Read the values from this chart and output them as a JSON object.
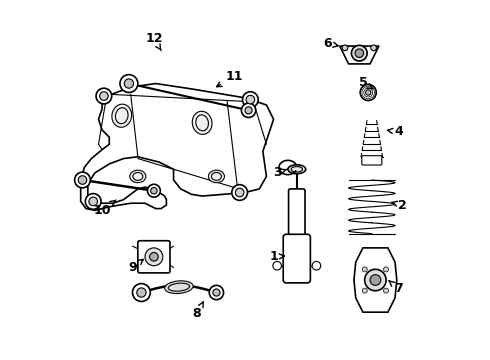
{
  "title": "",
  "background_color": "#ffffff",
  "line_color": "#000000",
  "label_color": "#000000",
  "fig_width": 4.9,
  "fig_height": 3.6,
  "dpi": 100
}
